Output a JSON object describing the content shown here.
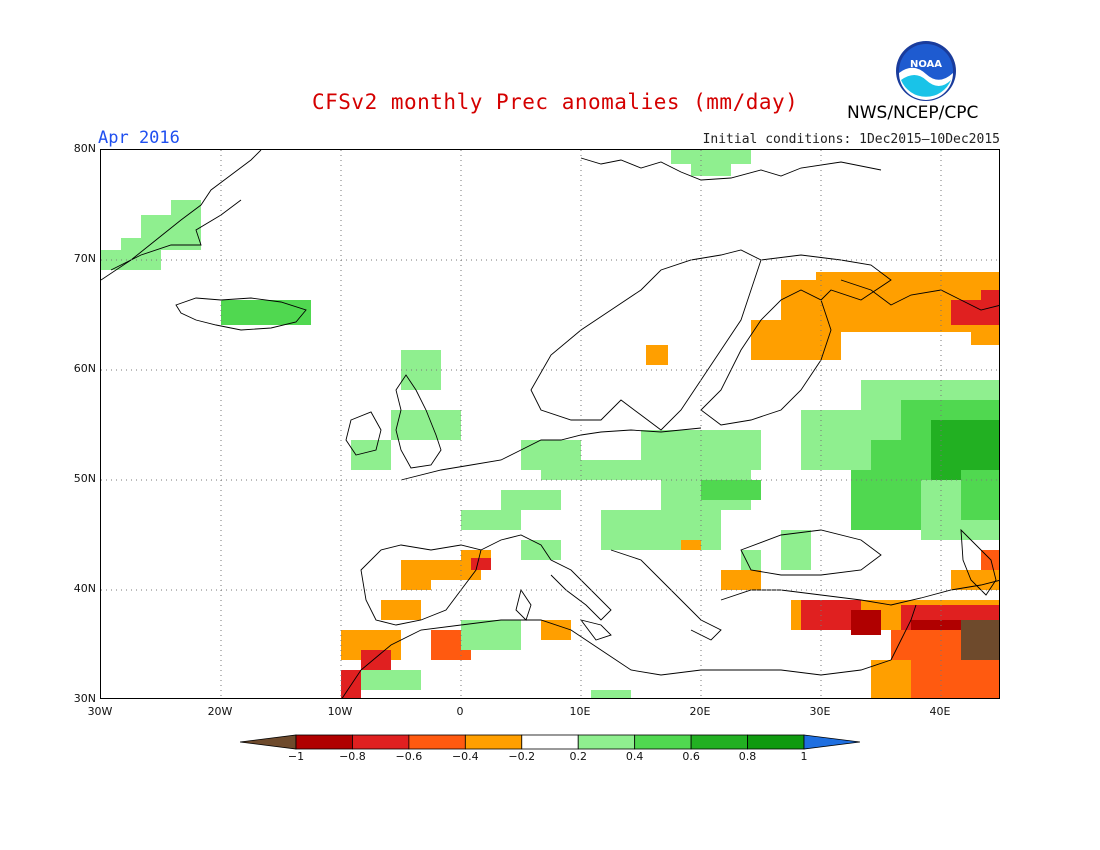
{
  "header": {
    "title": "CFSv2 monthly Prec anomalies (mm/day)",
    "valid_month": "Apr 2016",
    "initial_conditions": "Initial conditions: 1Dec2015—10Dec2015",
    "agency": "NWS/NCEP/CPC",
    "logo_text": "NOAA"
  },
  "map": {
    "region": "Europe",
    "lat_labels": [
      "80N",
      "70N",
      "60N",
      "50N",
      "40N",
      "30N"
    ],
    "lon_labels": [
      "30W",
      "20W",
      "10W",
      "0",
      "10E",
      "20E",
      "30E",
      "40E"
    ],
    "extent": {
      "lon_min": -30,
      "lon_max": 45,
      "lat_min": 30,
      "lat_max": 80
    },
    "grid_dotted": true
  },
  "colorbar": {
    "labels": [
      "−1",
      "−0.8",
      "−0.6",
      "−0.4",
      "−0.2",
      "0.2",
      "0.4",
      "0.6",
      "0.8",
      "1"
    ],
    "colors": [
      "#6e4a2c",
      "#b00000",
      "#e02020",
      "#ff5a10",
      "#ff9f00",
      "#ffffff",
      "#8fef8f",
      "#50d850",
      "#22b022",
      "#0f9a0f",
      "#1f6fe0"
    ]
  }
}
